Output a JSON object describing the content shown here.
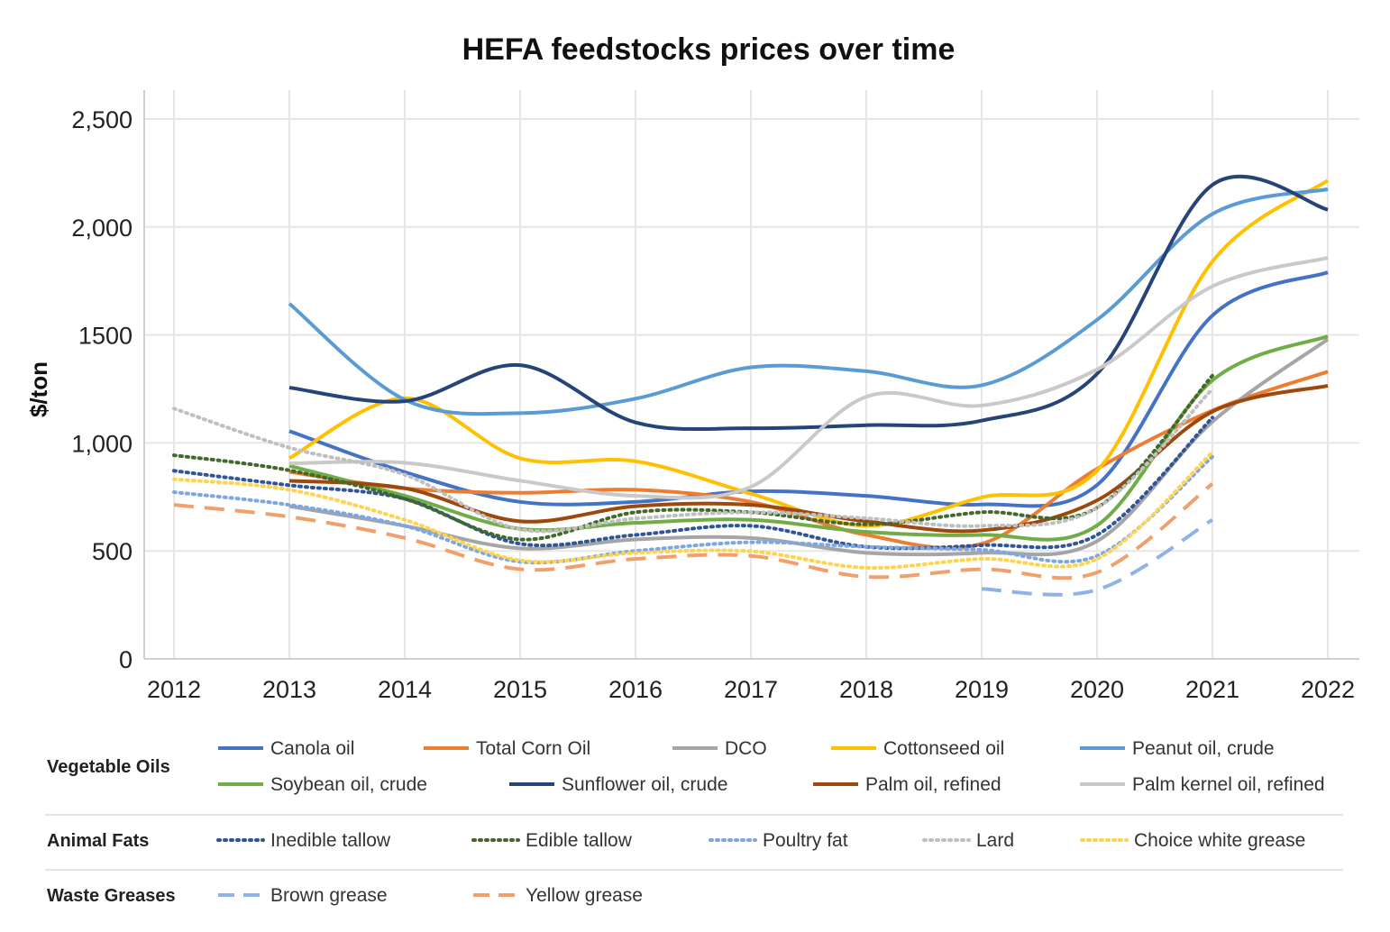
{
  "chart_data": {
    "type": "line",
    "title": "HEFA feedstocks prices over time",
    "ylabel": "$/ton",
    "xlabel": "",
    "ylim": [
      0,
      2500
    ],
    "xlim": [
      2012,
      2022
    ],
    "grid": true,
    "smoothed": true,
    "legend_placement": "bottom",
    "x": [
      2012,
      2013,
      2014,
      2015,
      2016,
      2017,
      2018,
      2019,
      2020,
      2021,
      2022
    ],
    "x_tick_labels": [
      "2012",
      "2013",
      "2014",
      "2015",
      "2016",
      "2017",
      "2018",
      "2019",
      "2020",
      "2021",
      "2022"
    ],
    "y_ticks": [
      0,
      500,
      1000,
      1500,
      2000,
      2500
    ],
    "y_tick_labels": [
      "0",
      "500",
      "1,000",
      "1500",
      "2,000",
      "2,500"
    ],
    "legend_groups": [
      {
        "label": "Vegetable Oils",
        "series": [
          "Canola oil",
          "Total Corn Oil",
          "DCO",
          "Cottonseed oil",
          "Peanut oil, crude",
          "Soybean oil, crude",
          "Sunflower oil, crude",
          "Palm oil, refined",
          "Palm kernel oil, refined"
        ]
      },
      {
        "label": "Animal Fats",
        "series": [
          "Inedible tallow",
          "Edible tallow",
          "Poultry fat",
          "Lard",
          "Choice white grease"
        ]
      },
      {
        "label": "Waste Greases",
        "series": [
          "Brown grease",
          "Yellow grease"
        ]
      }
    ],
    "series": [
      {
        "name": "Canola oil",
        "color": "#4472C4",
        "style": "solid",
        "values": [
          null,
          1055,
          865,
          727,
          727,
          776,
          755,
          715,
          805,
          1590,
          1790
        ]
      },
      {
        "name": "Total Corn Oil",
        "color": "#ED7D31",
        "style": "solid",
        "values": [
          null,
          866,
          790,
          769,
          783,
          727,
          574,
          533,
          880,
          1150,
          1330
        ]
      },
      {
        "name": "DCO",
        "color": "#A5A5A5",
        "style": "solid",
        "values": [
          null,
          707,
          616,
          512,
          553,
          560,
          491,
          491,
          545,
          1098,
          1480
        ]
      },
      {
        "name": "Cottonseed oil",
        "color": "#FFC000",
        "style": "solid",
        "values": [
          null,
          929,
          1207,
          929,
          915,
          765,
          616,
          748,
          872,
          1840,
          2215
        ]
      },
      {
        "name": "Peanut oil, crude",
        "color": "#5B9BD5",
        "style": "solid",
        "values": [
          null,
          1645,
          1200,
          1138,
          1205,
          1350,
          1332,
          1267,
          1570,
          2060,
          2175
        ]
      },
      {
        "name": "Soybean oil, crude",
        "color": "#70AD47",
        "style": "solid",
        "values": [
          null,
          894,
          755,
          602,
          630,
          644,
          588,
          574,
          618,
          1290,
          1494
        ]
      },
      {
        "name": "Sunflower oil, crude",
        "color": "#264478",
        "style": "solid",
        "values": [
          null,
          1256,
          1193,
          1360,
          1095,
          1068,
          1082,
          1103,
          1320,
          2195,
          2080
        ]
      },
      {
        "name": "Palm oil, refined",
        "color": "#9E480E",
        "style": "solid",
        "values": [
          null,
          825,
          790,
          637,
          707,
          713,
          637,
          595,
          734,
          1145,
          1265
        ]
      },
      {
        "name": "Palm kernel oil, refined",
        "color": "#C9C9C9",
        "style": "solid",
        "values": [
          null,
          905,
          908,
          825,
          755,
          797,
          1214,
          1173,
          1340,
          1725,
          1857
        ]
      },
      {
        "name": "Inedible tallow",
        "color": "#2F5597",
        "style": "dotted",
        "values": [
          871,
          804,
          741,
          533,
          574,
          616,
          519,
          526,
          574,
          1117,
          null
        ]
      },
      {
        "name": "Edible tallow",
        "color": "#43682B",
        "style": "dotted",
        "values": [
          943,
          873,
          741,
          553,
          679,
          679,
          623,
          679,
          700,
          1312,
          null
        ]
      },
      {
        "name": "Poultry fat",
        "color": "#7EA6E0",
        "style": "dotted",
        "values": [
          772,
          713,
          616,
          450,
          500,
          540,
          519,
          505,
          477,
          936,
          null
        ]
      },
      {
        "name": "Lard",
        "color": "#BFBFBF",
        "style": "dotted",
        "values": [
          1159,
          978,
          853,
          600,
          650,
          679,
          651,
          616,
          700,
          1250,
          null
        ]
      },
      {
        "name": "Choice white grease",
        "color": "#FFD34D",
        "style": "dotted",
        "values": [
          832,
          783,
          644,
          456,
          491,
          498,
          422,
          463,
          463,
          957,
          null
        ]
      },
      {
        "name": "Brown grease",
        "color": "#8FB4E3",
        "style": "dashed",
        "values": [
          null,
          null,
          null,
          null,
          null,
          null,
          null,
          324,
          320,
          644,
          null
        ]
      },
      {
        "name": "Yellow grease",
        "color": "#F0A06A",
        "style": "dashed",
        "values": [
          713,
          658,
          560,
          415,
          463,
          477,
          380,
          415,
          400,
          811,
          null
        ]
      }
    ]
  }
}
